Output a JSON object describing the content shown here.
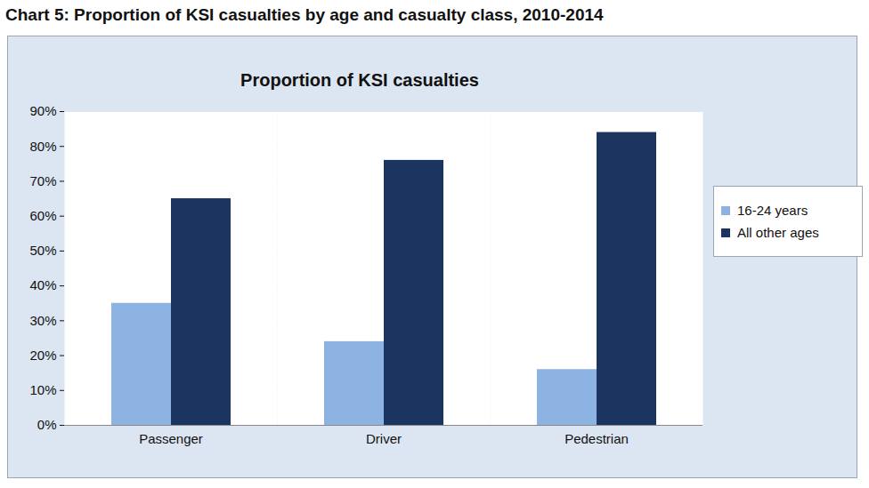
{
  "chart_data": {
    "type": "bar",
    "title": "Chart 5: Proportion of KSI casualties by age and casualty class, 2010-2014",
    "subtitle": "Proportion of KSI casualties",
    "categories": [
      "Passenger",
      "Driver",
      "Pedestrian"
    ],
    "series": [
      {
        "name": "16-24 years",
        "color": "#8db3e2",
        "values": [
          35,
          24,
          16
        ]
      },
      {
        "name": "All other ages",
        "color": "#1b3560",
        "values": [
          65,
          76,
          84
        ]
      }
    ],
    "ylim": [
      0,
      90
    ],
    "yticks": [
      {
        "value": 0,
        "label": "0%"
      },
      {
        "value": 10,
        "label": "10%"
      },
      {
        "value": 20,
        "label": "20%"
      },
      {
        "value": 30,
        "label": "30%"
      },
      {
        "value": 40,
        "label": "40%"
      },
      {
        "value": 50,
        "label": "50%"
      },
      {
        "value": 60,
        "label": "60%"
      },
      {
        "value": 70,
        "label": "70%"
      },
      {
        "value": 80,
        "label": "80%"
      },
      {
        "value": 90,
        "label": "90%"
      }
    ],
    "grid": true,
    "legend": "right"
  }
}
